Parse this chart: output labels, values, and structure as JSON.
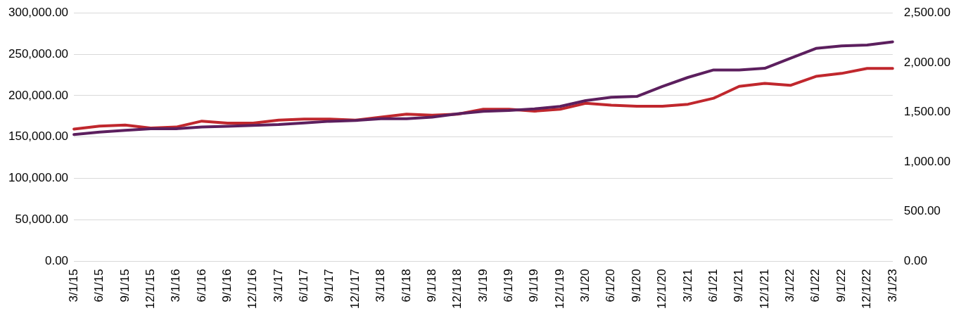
{
  "chart_data": {
    "type": "line",
    "categories": [
      "3/1/15",
      "6/1/15",
      "9/1/15",
      "12/1/15",
      "3/1/16",
      "6/1/16",
      "9/1/16",
      "12/1/16",
      "3/1/17",
      "6/1/17",
      "9/1/17",
      "12/1/17",
      "3/1/18",
      "6/1/18",
      "9/1/18",
      "12/1/18",
      "3/1/19",
      "6/1/19",
      "9/1/19",
      "12/1/19",
      "3/1/20",
      "6/1/20",
      "9/1/20",
      "12/1/20",
      "3/1/21",
      "6/1/21",
      "9/1/21",
      "12/1/21",
      "3/1/22",
      "6/1/22",
      "9/1/22",
      "12/1/22",
      "3/1/23"
    ],
    "series": [
      {
        "color": "#5c1f5e",
        "values": [
          153000,
          156000,
          158000,
          160000,
          160000,
          162000,
          163000,
          164000,
          165000,
          167000,
          169000,
          170000,
          172000,
          172000,
          174000,
          178000,
          181000,
          182000,
          184000,
          187000,
          194000,
          198000,
          199000,
          211000,
          222000,
          231000,
          231000,
          233000,
          245000,
          257000,
          260000,
          261000,
          265000
        ]
      },
      {
        "color": "#c0272d",
        "axis": "y2",
        "values": [
          1330,
          1360,
          1370,
          1340,
          1350,
          1410,
          1390,
          1390,
          1420,
          1430,
          1430,
          1420,
          1450,
          1480,
          1470,
          1480,
          1530,
          1530,
          1510,
          1530,
          1590,
          1570,
          1560,
          1560,
          1580,
          1640,
          1760,
          1790,
          1770,
          1860,
          1890,
          1940,
          1940
        ]
      }
    ],
    "ylim": [
      0,
      300000
    ],
    "yticks": [
      {
        "value": 0,
        "label": "0.00"
      },
      {
        "value": 50000,
        "label": "50,000.00"
      },
      {
        "value": 100000,
        "label": "100,000.00"
      },
      {
        "value": 150000,
        "label": "150,000.00"
      },
      {
        "value": 200000,
        "label": "200,000.00"
      },
      {
        "value": 250000,
        "label": "250,000.00"
      },
      {
        "value": 300000,
        "label": "300,000.00"
      }
    ],
    "y2lim": [
      0,
      2500
    ],
    "y2ticks": [
      {
        "value": 0,
        "label": "0.00"
      },
      {
        "value": 500,
        "label": "500.00"
      },
      {
        "value": 1000,
        "label": "1,000.00"
      },
      {
        "value": 1500,
        "label": "1,500.00"
      },
      {
        "value": 2000,
        "label": "2,000.00"
      },
      {
        "value": 2500,
        "label": "2,500.00"
      }
    ],
    "grid": "y",
    "legend": false,
    "marker": "none",
    "line_style": "solid"
  }
}
